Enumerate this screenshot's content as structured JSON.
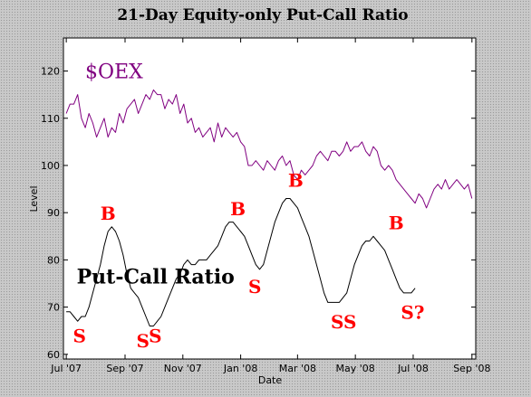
{
  "chart_data": {
    "type": "line",
    "title": "21-Day Equity-only Put-Call Ratio",
    "xlabel": "Date",
    "ylabel": "Level",
    "ylim": [
      59,
      127
    ],
    "yticks": [
      60,
      70,
      80,
      90,
      100,
      110,
      120
    ],
    "xticks": [
      {
        "label": "Jul '07",
        "x": 0
      },
      {
        "label": "Sep '07",
        "x": 62
      },
      {
        "label": "Nov '07",
        "x": 123
      },
      {
        "label": "Jan '08",
        "x": 184
      },
      {
        "label": "Mar '08",
        "x": 244
      },
      {
        "label": "May '08",
        "x": 305
      },
      {
        "label": "Jul '08",
        "x": 366
      },
      {
        "label": "Sep '08",
        "x": 428
      }
    ],
    "xlim": [
      -3,
      432
    ],
    "grid": false,
    "series": [
      {
        "name": "$OEX",
        "color": "#800080",
        "points": [
          [
            0,
            111
          ],
          [
            4,
            113
          ],
          [
            8,
            113
          ],
          [
            12,
            115
          ],
          [
            16,
            110
          ],
          [
            20,
            108
          ],
          [
            24,
            111
          ],
          [
            28,
            109
          ],
          [
            32,
            106
          ],
          [
            36,
            108
          ],
          [
            40,
            110
          ],
          [
            44,
            106
          ],
          [
            48,
            108
          ],
          [
            52,
            107
          ],
          [
            56,
            111
          ],
          [
            60,
            109
          ],
          [
            64,
            112
          ],
          [
            68,
            113
          ],
          [
            72,
            114
          ],
          [
            76,
            111
          ],
          [
            80,
            113
          ],
          [
            84,
            115
          ],
          [
            88,
            114
          ],
          [
            92,
            116
          ],
          [
            96,
            115
          ],
          [
            100,
            115
          ],
          [
            104,
            112
          ],
          [
            108,
            114
          ],
          [
            112,
            113
          ],
          [
            116,
            115
          ],
          [
            120,
            111
          ],
          [
            124,
            113
          ],
          [
            128,
            109
          ],
          [
            132,
            110
          ],
          [
            136,
            107
          ],
          [
            140,
            108
          ],
          [
            144,
            106
          ],
          [
            148,
            107
          ],
          [
            152,
            108
          ],
          [
            156,
            105
          ],
          [
            160,
            109
          ],
          [
            164,
            106
          ],
          [
            168,
            108
          ],
          [
            172,
            107
          ],
          [
            176,
            106
          ],
          [
            180,
            107
          ],
          [
            184,
            105
          ],
          [
            188,
            104
          ],
          [
            192,
            100
          ],
          [
            196,
            100
          ],
          [
            200,
            101
          ],
          [
            204,
            100
          ],
          [
            208,
            99
          ],
          [
            212,
            101
          ],
          [
            216,
            100
          ],
          [
            220,
            99
          ],
          [
            224,
            101
          ],
          [
            228,
            102
          ],
          [
            232,
            100
          ],
          [
            236,
            101
          ],
          [
            240,
            98
          ],
          [
            244,
            97
          ],
          [
            248,
            99
          ],
          [
            252,
            98
          ],
          [
            256,
            99
          ],
          [
            260,
            100
          ],
          [
            264,
            102
          ],
          [
            268,
            103
          ],
          [
            272,
            102
          ],
          [
            276,
            101
          ],
          [
            280,
            103
          ],
          [
            284,
            103
          ],
          [
            288,
            102
          ],
          [
            292,
            103
          ],
          [
            296,
            105
          ],
          [
            300,
            103
          ],
          [
            304,
            104
          ],
          [
            308,
            104
          ],
          [
            312,
            105
          ],
          [
            316,
            103
          ],
          [
            320,
            102
          ],
          [
            324,
            104
          ],
          [
            328,
            103
          ],
          [
            332,
            100
          ],
          [
            336,
            99
          ],
          [
            340,
            100
          ],
          [
            344,
            99
          ],
          [
            348,
            97
          ],
          [
            352,
            96
          ],
          [
            356,
            95
          ],
          [
            360,
            94
          ],
          [
            364,
            93
          ],
          [
            368,
            92
          ],
          [
            372,
            94
          ],
          [
            376,
            93
          ],
          [
            380,
            91
          ],
          [
            384,
            93
          ],
          [
            388,
            95
          ],
          [
            392,
            96
          ],
          [
            396,
            95
          ],
          [
            400,
            97
          ],
          [
            404,
            95
          ],
          [
            408,
            96
          ],
          [
            412,
            97
          ],
          [
            416,
            96
          ],
          [
            420,
            95
          ],
          [
            424,
            96
          ],
          [
            428,
            93
          ]
        ]
      },
      {
        "name": "Put-Call Ratio",
        "color": "#000000",
        "points": [
          [
            0,
            69
          ],
          [
            4,
            69
          ],
          [
            8,
            68
          ],
          [
            12,
            67
          ],
          [
            16,
            68
          ],
          [
            20,
            68
          ],
          [
            24,
            70
          ],
          [
            28,
            73
          ],
          [
            32,
            76
          ],
          [
            36,
            79
          ],
          [
            40,
            83
          ],
          [
            44,
            86
          ],
          [
            48,
            87
          ],
          [
            52,
            86
          ],
          [
            56,
            84
          ],
          [
            60,
            81
          ],
          [
            64,
            77
          ],
          [
            68,
            74
          ],
          [
            72,
            73
          ],
          [
            76,
            72
          ],
          [
            80,
            70
          ],
          [
            84,
            68
          ],
          [
            88,
            66
          ],
          [
            92,
            66
          ],
          [
            96,
            67
          ],
          [
            100,
            68
          ],
          [
            104,
            70
          ],
          [
            108,
            72
          ],
          [
            112,
            74
          ],
          [
            116,
            76
          ],
          [
            120,
            77
          ],
          [
            124,
            79
          ],
          [
            128,
            80
          ],
          [
            132,
            79
          ],
          [
            136,
            79
          ],
          [
            140,
            80
          ],
          [
            144,
            80
          ],
          [
            148,
            80
          ],
          [
            152,
            81
          ],
          [
            156,
            82
          ],
          [
            160,
            83
          ],
          [
            164,
            85
          ],
          [
            168,
            87
          ],
          [
            172,
            88
          ],
          [
            176,
            88
          ],
          [
            180,
            87
          ],
          [
            184,
            86
          ],
          [
            188,
            85
          ],
          [
            192,
            83
          ],
          [
            196,
            81
          ],
          [
            200,
            79
          ],
          [
            204,
            78
          ],
          [
            208,
            79
          ],
          [
            212,
            82
          ],
          [
            216,
            85
          ],
          [
            220,
            88
          ],
          [
            224,
            90
          ],
          [
            228,
            92
          ],
          [
            232,
            93
          ],
          [
            236,
            93
          ],
          [
            240,
            92
          ],
          [
            244,
            91
          ],
          [
            248,
            89
          ],
          [
            252,
            87
          ],
          [
            256,
            85
          ],
          [
            260,
            82
          ],
          [
            264,
            79
          ],
          [
            268,
            76
          ],
          [
            272,
            73
          ],
          [
            276,
            71
          ],
          [
            280,
            71
          ],
          [
            284,
            71
          ],
          [
            288,
            71
          ],
          [
            292,
            72
          ],
          [
            296,
            73
          ],
          [
            300,
            76
          ],
          [
            304,
            79
          ],
          [
            308,
            81
          ],
          [
            312,
            83
          ],
          [
            316,
            84
          ],
          [
            320,
            84
          ],
          [
            324,
            85
          ],
          [
            328,
            84
          ],
          [
            332,
            83
          ],
          [
            336,
            82
          ],
          [
            340,
            80
          ],
          [
            344,
            78
          ],
          [
            348,
            76
          ],
          [
            352,
            74
          ],
          [
            356,
            73
          ],
          [
            360,
            73
          ],
          [
            364,
            73
          ],
          [
            368,
            74
          ]
        ]
      }
    ],
    "annotations": [
      {
        "text": "$OEX",
        "x": 20,
        "y": 118.5,
        "style": "oex"
      },
      {
        "text": "Put-Call Ratio",
        "x": 11,
        "y": 75,
        "style": "pcr"
      },
      {
        "text": "B",
        "x": 36,
        "y": 88.5,
        "style": "red"
      },
      {
        "text": "B",
        "x": 173,
        "y": 89.5,
        "style": "red"
      },
      {
        "text": "B",
        "x": 234,
        "y": 95.5,
        "style": "red"
      },
      {
        "text": "B",
        "x": 340,
        "y": 86.5,
        "style": "red"
      },
      {
        "text": "S",
        "x": 7,
        "y": 62.5,
        "style": "red"
      },
      {
        "text": "S",
        "x": 192,
        "y": 73,
        "style": "red"
      },
      {
        "text": "S",
        "x": 74,
        "y": 61.5,
        "style": "red"
      },
      {
        "text": "S",
        "x": 87,
        "y": 62.5,
        "style": "red"
      },
      {
        "text": "SS",
        "x": 279,
        "y": 65.5,
        "style": "red"
      },
      {
        "text": "S?",
        "x": 353,
        "y": 67.5,
        "style": "red"
      }
    ]
  }
}
